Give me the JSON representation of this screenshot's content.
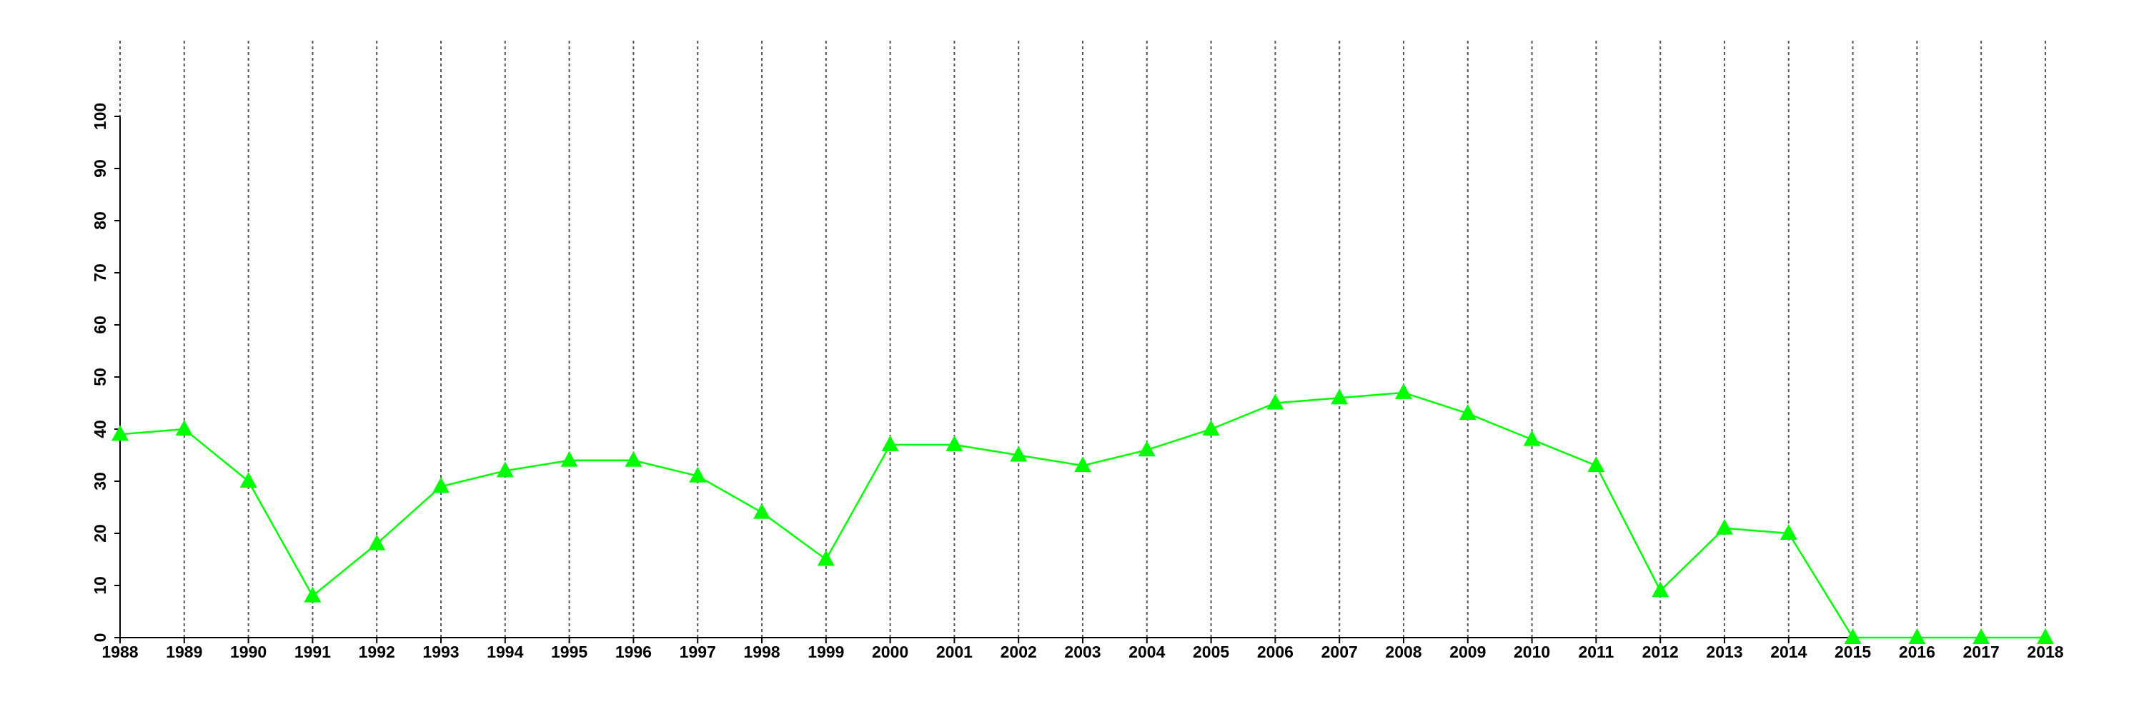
{
  "chart_data": {
    "type": "line",
    "categories": [
      "1988",
      "1989",
      "1990",
      "1991",
      "1992",
      "1993",
      "1994",
      "1995",
      "1996",
      "1997",
      "1998",
      "1999",
      "2000",
      "2001",
      "2002",
      "2003",
      "2004",
      "2005",
      "2006",
      "2007",
      "2008",
      "2009",
      "2010",
      "2011",
      "2012",
      "2013",
      "2014",
      "2015",
      "2016",
      "2017",
      "2018"
    ],
    "values": [
      39,
      40,
      30,
      8,
      18,
      29,
      32,
      34,
      34,
      31,
      24,
      15,
      37,
      37,
      35,
      33,
      36,
      40,
      45,
      46,
      47,
      43,
      38,
      33,
      9,
      21,
      20,
      0,
      0,
      0,
      0
    ],
    "color": "#00ff00",
    "marker": "triangle",
    "ylim": [
      0,
      100
    ],
    "yticks": [
      0,
      10,
      20,
      30,
      40,
      50,
      60,
      70,
      80,
      90,
      100
    ],
    "x_grid": true
  }
}
